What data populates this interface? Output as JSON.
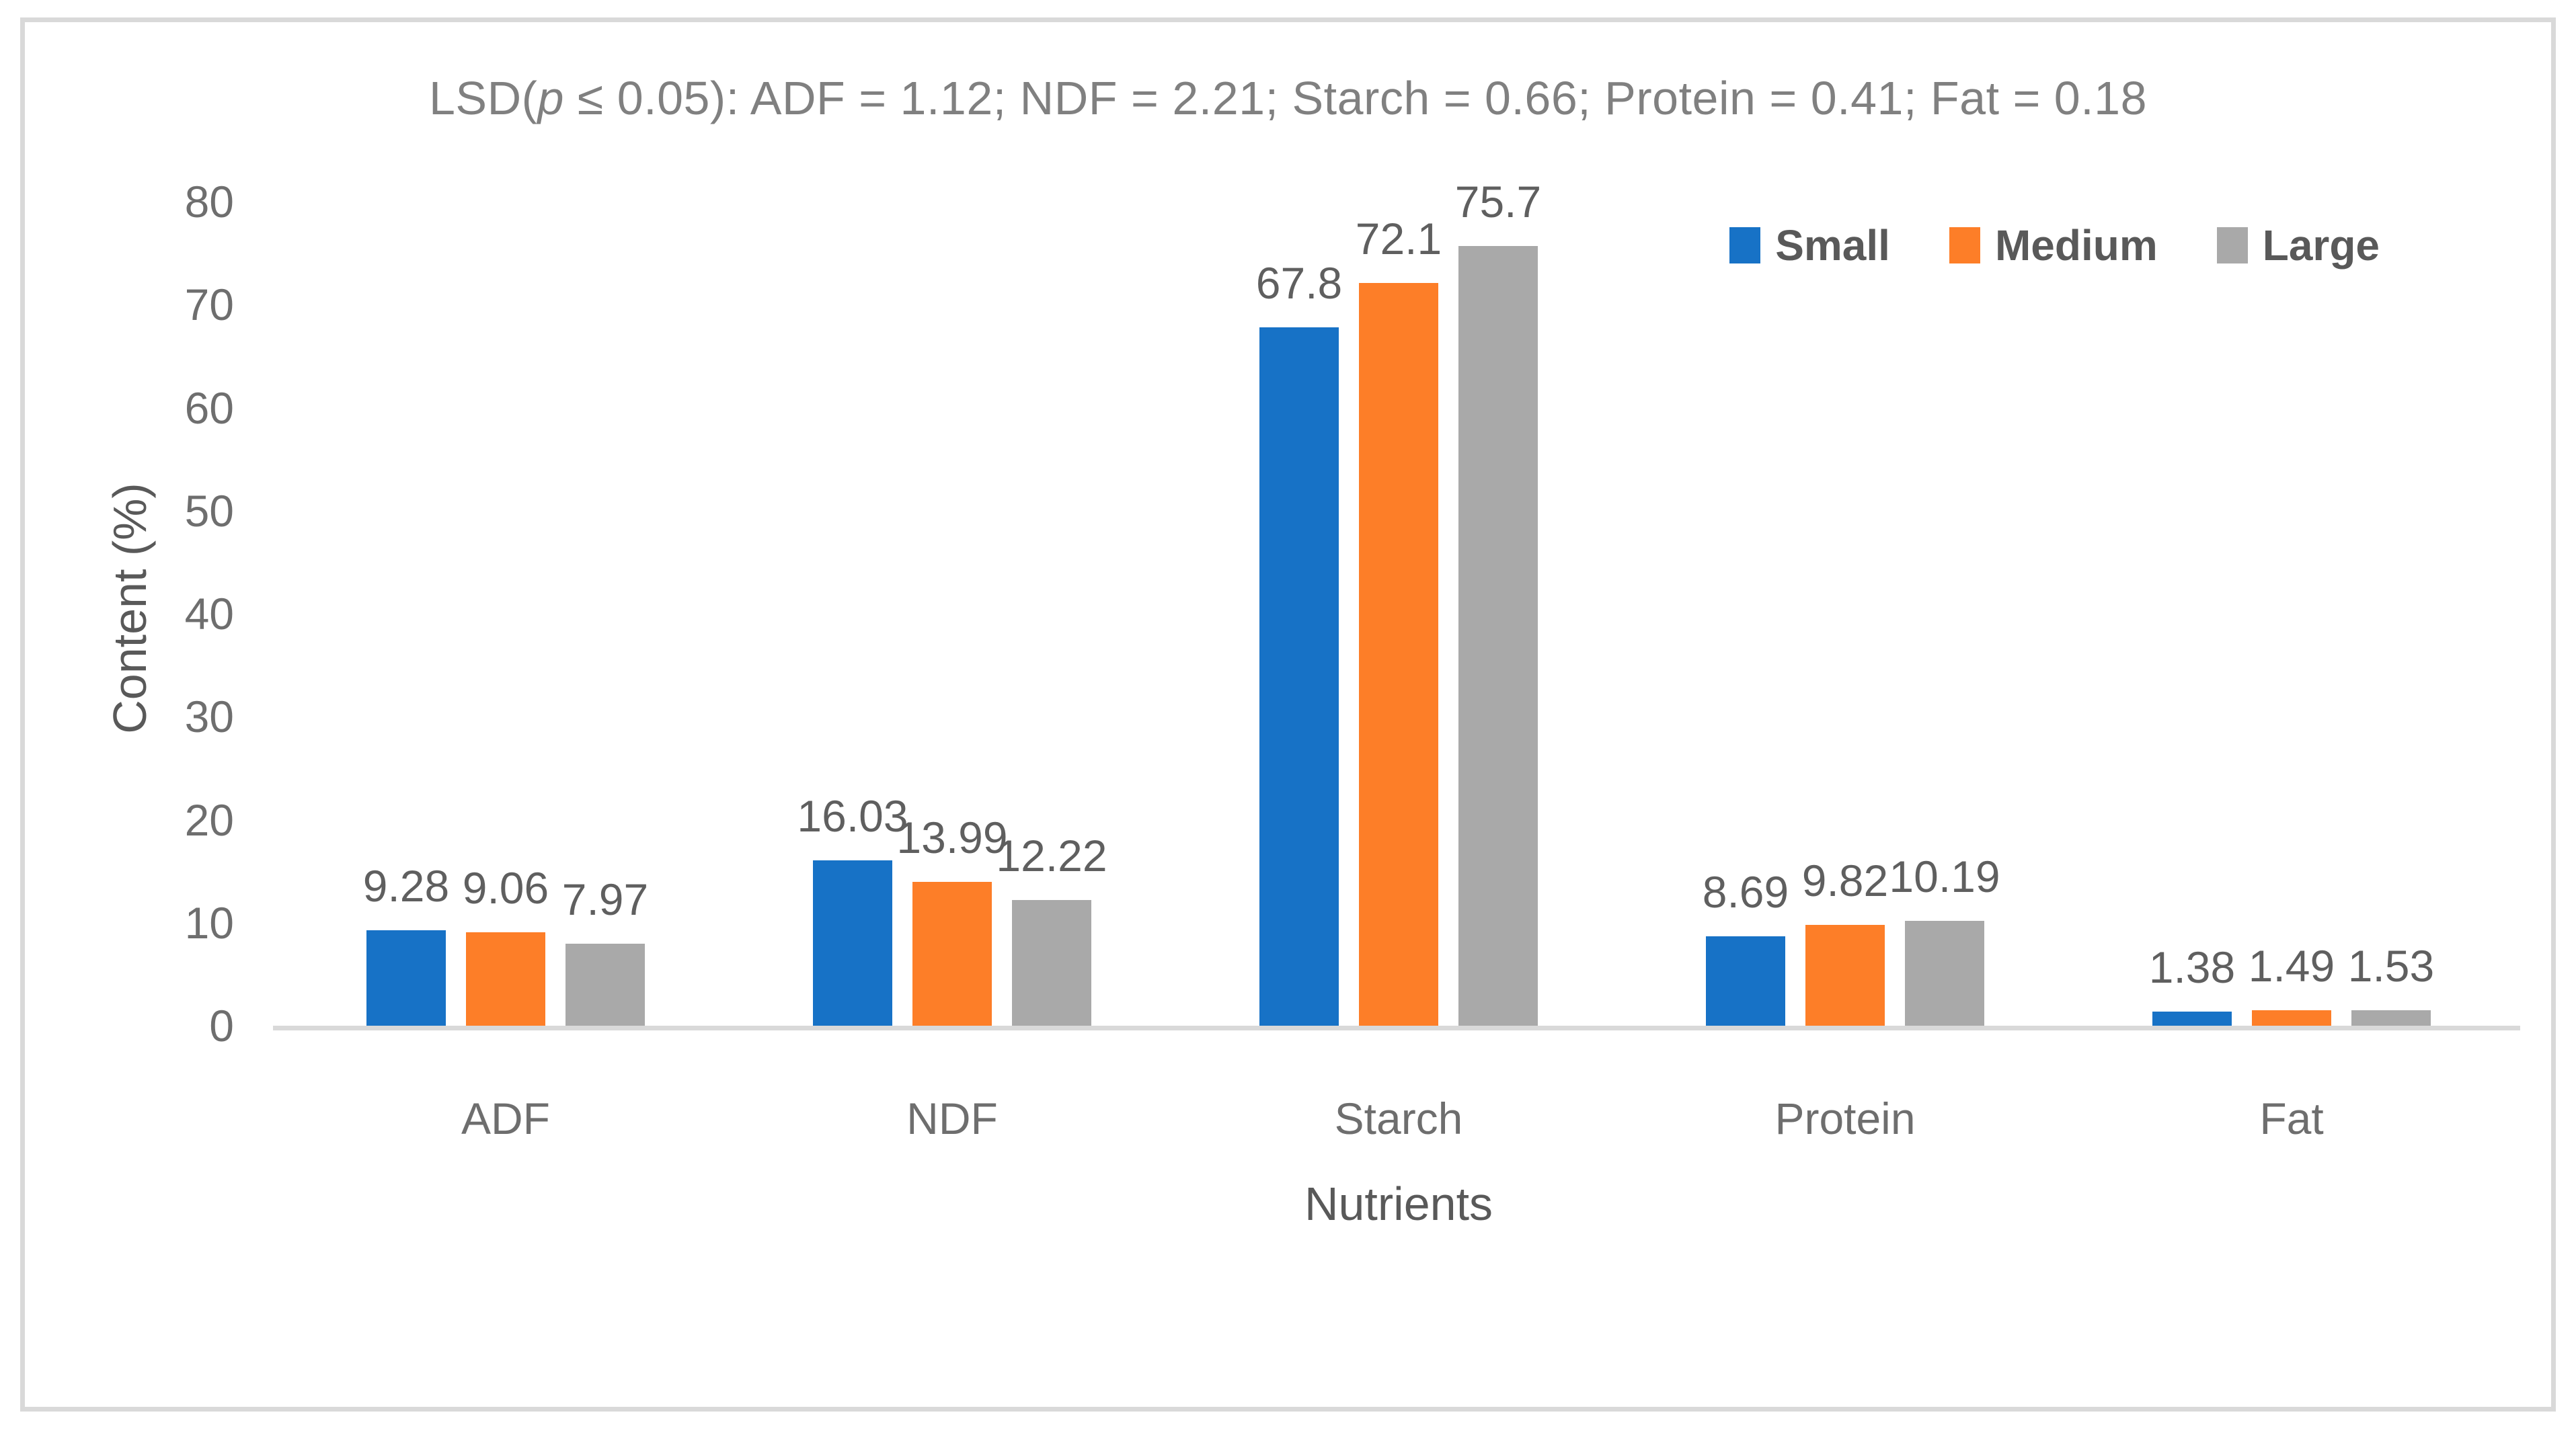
{
  "figure": {
    "title_parts": {
      "prefix": "LSD(",
      "p_italic": "p",
      "suffix": " ≤ 0.05): ADF = 1.12; NDF = 2.21; Starch = 0.66; Protein = 0.41; Fat = 0.18"
    }
  },
  "chart_data": {
    "type": "bar",
    "title": "LSD(p ≤ 0.05): ADF = 1.12; NDF = 2.21; Starch = 0.66; Protein = 0.41; Fat = 0.18",
    "categories": [
      "ADF",
      "NDF",
      "Starch",
      "Protein",
      "Fat"
    ],
    "series": [
      {
        "name": "Small",
        "color": "#1772C6",
        "values": [
          9.28,
          16.03,
          67.8,
          8.69,
          1.38
        ],
        "labels": [
          "9.28",
          "16.03",
          "67.8",
          "8.69",
          "1.38"
        ]
      },
      {
        "name": "Medium",
        "color": "#FD7E28",
        "values": [
          9.06,
          13.99,
          72.1,
          9.82,
          1.49
        ],
        "labels": [
          "9.06",
          "13.99",
          "72.1",
          "9.82",
          "1.49"
        ]
      },
      {
        "name": "Large",
        "color": "#A9A9A9",
        "values": [
          7.97,
          12.22,
          75.7,
          10.19,
          1.53
        ],
        "labels": [
          "7.97",
          "12.22",
          "75.7",
          "10.19",
          "1.53"
        ]
      }
    ],
    "xlabel": "Nutrients",
    "ylabel": "Content (%)",
    "ylim": [
      0,
      80
    ],
    "yticks": [
      0,
      10,
      20,
      30,
      40,
      50,
      60,
      70,
      80
    ],
    "grid": false,
    "legend_position": "top-right",
    "style": {
      "axis_line_color": "#D9D9D9",
      "border_color": "#D9D9D9",
      "title_color": "#808080",
      "tick_color": "#6e6e6e",
      "data_label_color": "#5f5f5f",
      "legend_text_color": "#595959"
    }
  }
}
